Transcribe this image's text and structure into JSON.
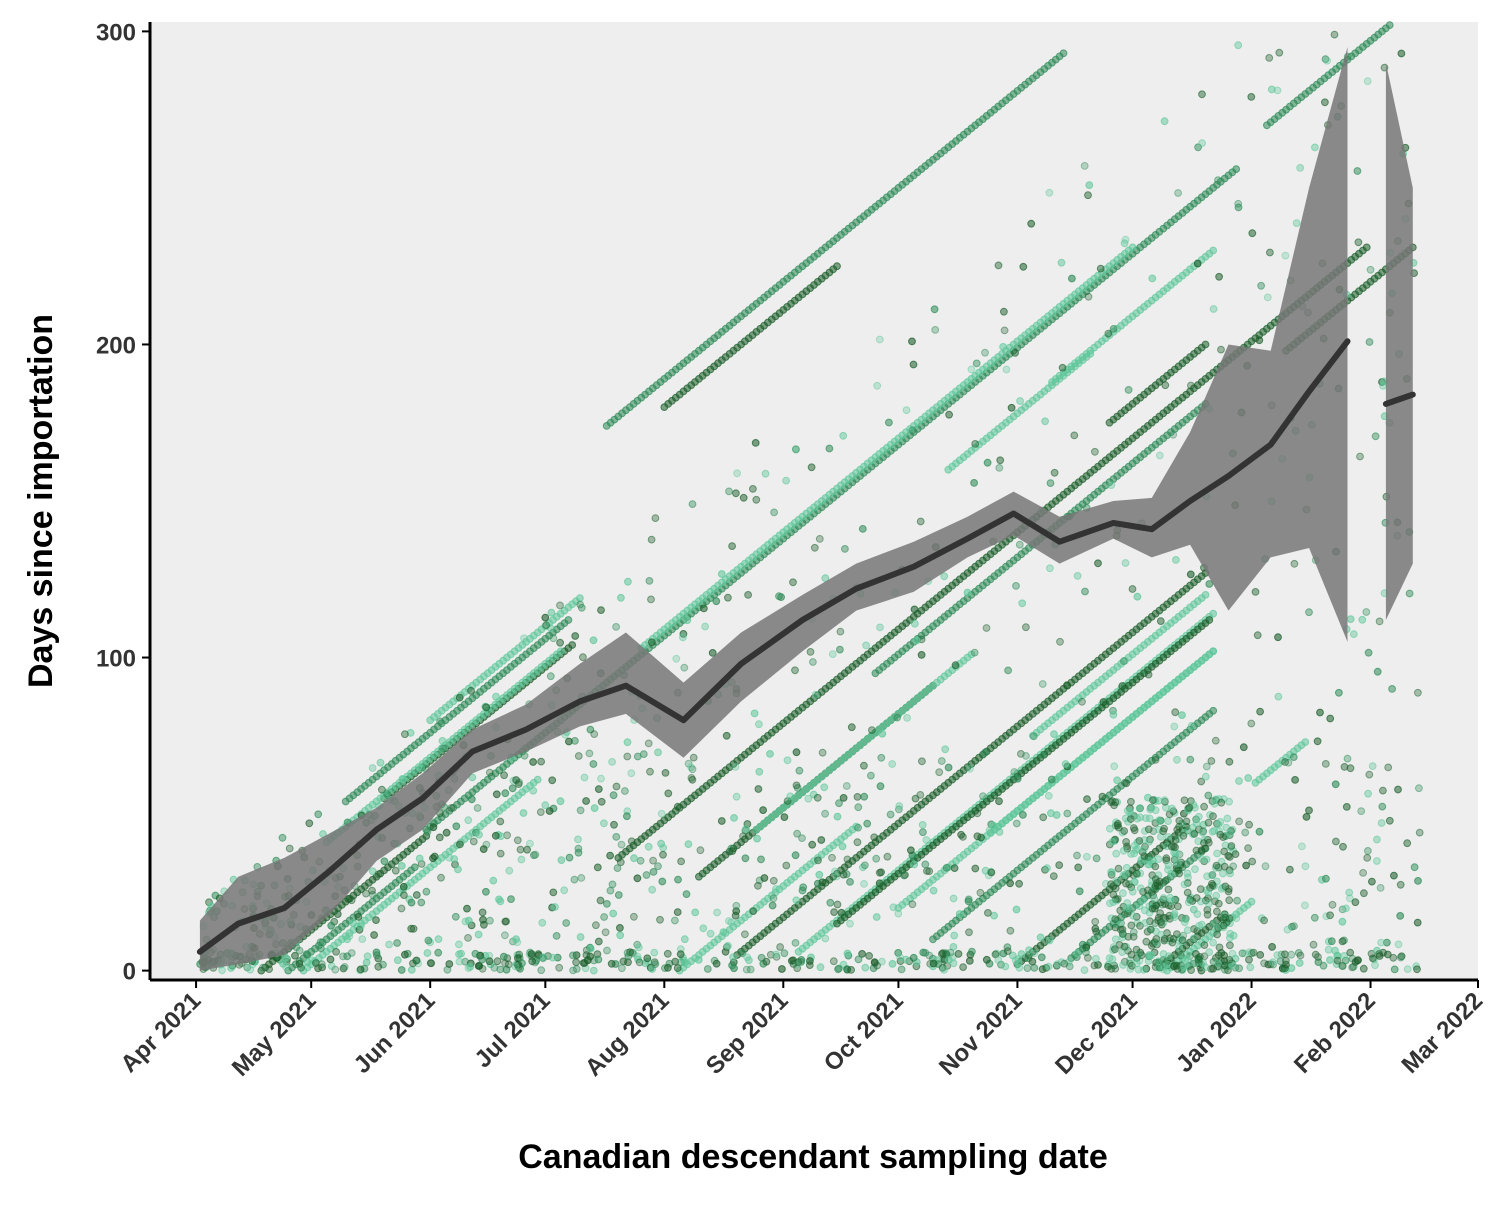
{
  "chart_data": {
    "type": "scatter",
    "title": "",
    "xlabel": "Canadian descendant sampling date",
    "ylabel": "Days since importation",
    "xlim": [
      "2021-03-20",
      "2022-03-01"
    ],
    "ylim": [
      -3,
      303
    ],
    "x_ticks": [
      "2021-04-01",
      "2021-05-01",
      "2021-06-01",
      "2021-07-01",
      "2021-08-01",
      "2021-09-01",
      "2021-10-01",
      "2021-11-01",
      "2021-12-01",
      "2022-01-01",
      "2022-02-01",
      "2022-03-01"
    ],
    "x_tick_labels": [
      "Apr 2021",
      "May 2021",
      "Jun 2021",
      "Jul 2021",
      "Aug 2021",
      "Sep 2021",
      "Oct 2021",
      "Nov 2021",
      "Dec 2021",
      "Jan 2022",
      "Feb 2022",
      "Mar 2022"
    ],
    "y_ticks": [
      0,
      100,
      200,
      300
    ],
    "y_tick_labels": [
      "0",
      "100",
      "200",
      "300"
    ],
    "grid": false,
    "legend": "none",
    "colors": {
      "panel_background": "#eeeeee",
      "point_dark": "#1b5e2a",
      "point_mid": "#2e8b57",
      "point_light": "#5fc79a",
      "smooth_line": "#333333",
      "ribbon": "#777777"
    },
    "lineages": [
      {
        "start": "2021-04-18",
        "end": "2021-05-31",
        "days_at_start": 0,
        "color": "dark"
      },
      {
        "start": "2021-04-25",
        "end": "2021-05-28",
        "days_at_start": 0,
        "color": "mid"
      },
      {
        "start": "2021-04-29",
        "end": "2021-06-29",
        "days_at_start": 0,
        "color": "light"
      },
      {
        "start": "2021-05-10",
        "end": "2021-07-07",
        "days_at_start": 54,
        "color": "mid"
      },
      {
        "start": "2021-05-20",
        "end": "2021-07-08",
        "days_at_start": 55,
        "color": "dark"
      },
      {
        "start": "2021-05-05",
        "end": "2021-07-05",
        "days_at_start": 41,
        "color": "light"
      },
      {
        "start": "2021-06-01",
        "end": "2021-07-10",
        "days_at_start": 80,
        "color": "light"
      },
      {
        "start": "2021-05-31",
        "end": "2021-12-28",
        "days_at_start": 45,
        "color": "mid"
      },
      {
        "start": "2021-07-26",
        "end": "2021-12-01",
        "days_at_start": 103,
        "color": "light"
      },
      {
        "start": "2021-07-20",
        "end": "2022-01-31",
        "days_at_start": 36,
        "color": "dark"
      },
      {
        "start": "2021-07-17",
        "end": "2021-11-13",
        "days_at_start": 174,
        "color": "mid"
      },
      {
        "start": "2021-08-01",
        "end": "2021-09-15",
        "days_at_start": 180,
        "color": "dark"
      },
      {
        "start": "2021-08-20",
        "end": "2021-12-20",
        "days_at_start": 5,
        "color": "dark"
      },
      {
        "start": "2021-09-05",
        "end": "2021-12-22",
        "days_at_start": 6,
        "color": "light"
      },
      {
        "start": "2021-09-15",
        "end": "2021-12-21",
        "days_at_start": 15,
        "color": "dark"
      },
      {
        "start": "2021-10-01",
        "end": "2021-12-22",
        "days_at_start": 20,
        "color": "light"
      },
      {
        "start": "2021-10-10",
        "end": "2021-12-22",
        "days_at_start": 10,
        "color": "mid"
      },
      {
        "start": "2021-10-25",
        "end": "2021-12-22",
        "days_at_start": 44,
        "color": "light"
      },
      {
        "start": "2021-11-05",
        "end": "2021-12-20",
        "days_at_start": 75,
        "color": "light"
      },
      {
        "start": "2021-11-01",
        "end": "2021-12-15",
        "days_at_start": 2,
        "color": "dark"
      },
      {
        "start": "2021-11-15",
        "end": "2021-12-20",
        "days_at_start": 4,
        "color": "mid"
      },
      {
        "start": "2021-12-08",
        "end": "2021-12-25",
        "days_at_start": 1,
        "color": "dark"
      },
      {
        "start": "2021-12-10",
        "end": "2022-01-01",
        "days_at_start": 0,
        "color": "light"
      },
      {
        "start": "2021-11-25",
        "end": "2021-12-20",
        "days_at_start": 175,
        "color": "dark"
      },
      {
        "start": "2021-11-10",
        "end": "2021-12-22",
        "days_at_start": 188,
        "color": "light"
      },
      {
        "start": "2021-10-14",
        "end": "2021-11-20",
        "days_at_start": 160,
        "color": "light"
      },
      {
        "start": "2021-09-25",
        "end": "2021-12-20",
        "days_at_start": 95,
        "color": "mid"
      },
      {
        "start": "2021-08-10",
        "end": "2021-10-10",
        "days_at_start": 30,
        "color": "dark"
      },
      {
        "start": "2021-08-25",
        "end": "2021-10-20",
        "days_at_start": 45,
        "color": "light"
      },
      {
        "start": "2021-08-05",
        "end": "2021-09-20",
        "days_at_start": 0,
        "color": "light"
      },
      {
        "start": "2022-01-05",
        "end": "2022-02-12",
        "days_at_start": 270,
        "color": "mid"
      },
      {
        "start": "2022-01-10",
        "end": "2022-02-12",
        "days_at_start": 198,
        "color": "dark"
      },
      {
        "start": "2022-01-02",
        "end": "2022-01-15",
        "days_at_start": 60,
        "color": "light"
      }
    ],
    "smooth_trend": {
      "x": [
        "2021-04-02",
        "2021-04-12",
        "2021-04-24",
        "2021-05-06",
        "2021-05-18",
        "2021-05-30",
        "2021-06-12",
        "2021-06-26",
        "2021-07-10",
        "2021-07-22",
        "2021-08-06",
        "2021-08-21",
        "2021-09-06",
        "2021-09-20",
        "2021-10-05",
        "2021-10-19",
        "2021-10-31",
        "2021-11-12",
        "2021-11-26",
        "2021-12-06",
        "2021-12-16",
        "2021-12-26",
        "2022-01-06",
        "2022-01-16",
        "2022-01-26",
        "2022-02-05",
        "2022-02-12"
      ],
      "y": [
        6,
        15,
        20,
        32,
        45,
        55,
        70,
        77,
        86,
        91,
        80,
        98,
        112,
        122,
        129,
        138,
        146,
        137,
        143,
        141,
        150,
        158,
        168,
        185,
        201,
        181,
        184
      ],
      "ribbon_low": [
        0,
        2,
        5,
        18,
        35,
        45,
        63,
        70,
        78,
        82,
        68,
        86,
        102,
        115,
        121,
        132,
        139,
        130,
        138,
        132,
        136,
        115,
        132,
        135,
        105,
        112,
        130
      ],
      "ribbon_high": [
        16,
        30,
        36,
        44,
        52,
        63,
        77,
        85,
        98,
        108,
        92,
        108,
        120,
        130,
        137,
        145,
        153,
        145,
        150,
        151,
        172,
        200,
        198,
        250,
        295,
        290,
        250
      ]
    }
  }
}
